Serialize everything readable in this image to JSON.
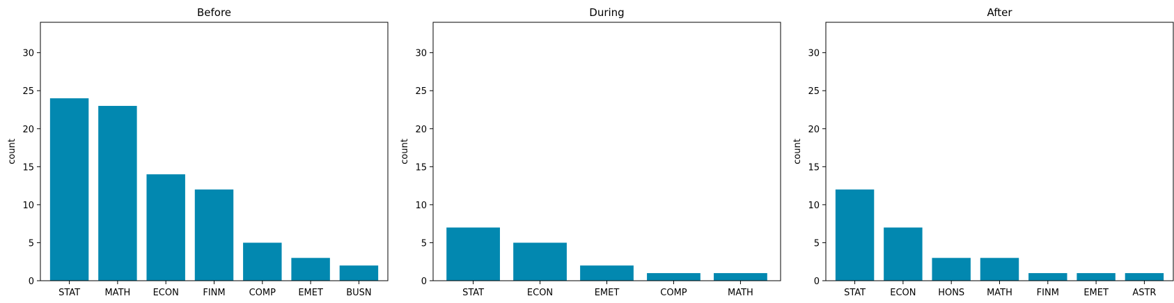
{
  "chart_data": [
    {
      "type": "bar",
      "title": "Before",
      "ylabel": "count",
      "ylim": [
        0,
        34
      ],
      "yticks": [
        0,
        5,
        10,
        15,
        20,
        25,
        30
      ],
      "categories": [
        "STAT",
        "MATH",
        "ECON",
        "FINM",
        "COMP",
        "EMET",
        "BUSN"
      ],
      "values": [
        24,
        23,
        14,
        12,
        5,
        3,
        2
      ],
      "color": "#0288B0"
    },
    {
      "type": "bar",
      "title": "During",
      "ylabel": "count",
      "ylim": [
        0,
        34
      ],
      "yticks": [
        0,
        5,
        10,
        15,
        20,
        25,
        30
      ],
      "categories": [
        "STAT",
        "ECON",
        "EMET",
        "COMP",
        "MATH"
      ],
      "values": [
        7,
        5,
        2,
        1,
        1
      ],
      "color": "#0288B0"
    },
    {
      "type": "bar",
      "title": "After",
      "ylabel": "count",
      "ylim": [
        0,
        34
      ],
      "yticks": [
        0,
        5,
        10,
        15,
        20,
        25,
        30
      ],
      "categories": [
        "STAT",
        "ECON",
        "HONS",
        "MATH",
        "FINM",
        "EMET",
        "ASTR"
      ],
      "values": [
        12,
        7,
        3,
        3,
        1,
        1,
        1
      ],
      "color": "#0288B0"
    }
  ]
}
